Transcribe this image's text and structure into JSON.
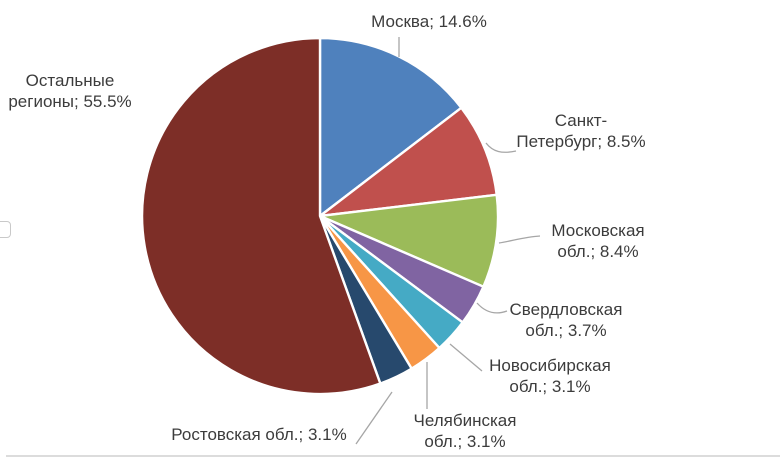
{
  "chart_data": {
    "type": "pie",
    "title": "",
    "categories": [
      "Москва",
      "Санкт-Петербург",
      "Московская обл.",
      "Свердловская обл.",
      "Новосибирская обл.",
      "Челябинская обл.",
      "Ростовская обл.",
      "Остальные регионы"
    ],
    "values": [
      14.6,
      8.5,
      8.4,
      3.7,
      3.1,
      3.1,
      3.1,
      55.5
    ],
    "colors": [
      "#4f81bd",
      "#c0504d",
      "#9bbb59",
      "#8064a2",
      "#45aac5",
      "#f79646",
      "#27496d",
      "#7d2e27"
    ],
    "ids": [
      "moscow",
      "saint-petersburg",
      "moscow-oblast",
      "sverdlovsk-oblast",
      "novosibirsk-oblast",
      "chelyabinsk-oblast",
      "rostov-oblast",
      "other-regions"
    ],
    "start_angle_deg": 0,
    "direction": "clockwise",
    "legend": "none",
    "data_labels": "outside: category name; percent",
    "slice_separator_color": "#ffffff",
    "leader_line_color": "#a6a6a6"
  },
  "labels": {
    "moscow": {
      "line1": "Москва; 14.6%"
    },
    "other": {
      "line1": "Остальные",
      "line2": "регионы; 55.5%"
    },
    "spb": {
      "line1": "Санкт-",
      "line2": "Петербург; 8.5%"
    },
    "mos_obl": {
      "line1": "Московская",
      "line2": "обл.; 8.4%"
    },
    "sverdlovsk": {
      "line1": "Свердловская",
      "line2": "обл.; 3.7%"
    },
    "novosibirsk": {
      "line1": "Новосибирская",
      "line2": "обл.; 3.1%"
    },
    "chelyabinsk": {
      "line1": "Челябинская",
      "line2": "обл.; 3.1%"
    },
    "rostov": {
      "line1": "Ростовская обл.; 3.1%"
    }
  }
}
